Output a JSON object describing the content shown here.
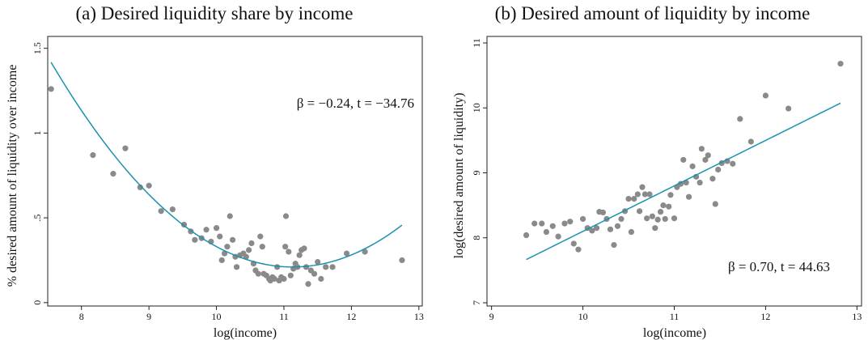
{
  "chart_data": [
    {
      "type": "scatter",
      "panel_title": "(a) Desired liquidity share by income",
      "xlabel": "log(income)",
      "ylabel": "% desired amount of liquidity over income",
      "annotation": "β = −0.24, t = −34.76",
      "xlim": [
        7.5,
        13.05
      ],
      "ylim": [
        -0.02,
        1.57
      ],
      "xticks": [
        "8",
        "9",
        "10",
        "11",
        "12",
        "13"
      ],
      "yticks": [
        "0",
        ".5",
        "1",
        "1.5"
      ],
      "grid": false,
      "fit": {
        "type": "quadratic",
        "coef": [
          0.21,
          0.0942,
          11.13
        ],
        "x_range": [
          7.55,
          12.75
        ],
        "color": "#1b91b0"
      },
      "points": [
        [
          7.55,
          1.26
        ],
        [
          8.17,
          0.87
        ],
        [
          8.47,
          0.76
        ],
        [
          8.65,
          0.91
        ],
        [
          8.87,
          0.68
        ],
        [
          9.0,
          0.69
        ],
        [
          9.18,
          0.54
        ],
        [
          9.35,
          0.55
        ],
        [
          9.52,
          0.46
        ],
        [
          9.62,
          0.42
        ],
        [
          9.68,
          0.37
        ],
        [
          9.78,
          0.38
        ],
        [
          9.85,
          0.43
        ],
        [
          9.92,
          0.36
        ],
        [
          10.0,
          0.44
        ],
        [
          10.05,
          0.39
        ],
        [
          10.08,
          0.25
        ],
        [
          10.12,
          0.29
        ],
        [
          10.16,
          0.33
        ],
        [
          10.2,
          0.51
        ],
        [
          10.24,
          0.37
        ],
        [
          10.28,
          0.27
        ],
        [
          10.3,
          0.21
        ],
        [
          10.35,
          0.28
        ],
        [
          10.4,
          0.29
        ],
        [
          10.44,
          0.27
        ],
        [
          10.48,
          0.31
        ],
        [
          10.52,
          0.35
        ],
        [
          10.55,
          0.23
        ],
        [
          10.58,
          0.19
        ],
        [
          10.62,
          0.17
        ],
        [
          10.65,
          0.39
        ],
        [
          10.68,
          0.33
        ],
        [
          10.7,
          0.17
        ],
        [
          10.74,
          0.16
        ],
        [
          10.78,
          0.14
        ],
        [
          10.8,
          0.13
        ],
        [
          10.83,
          0.15
        ],
        [
          10.86,
          0.14
        ],
        [
          10.9,
          0.21
        ],
        [
          10.93,
          0.13
        ],
        [
          10.96,
          0.15
        ],
        [
          11.0,
          0.14
        ],
        [
          11.02,
          0.33
        ],
        [
          11.03,
          0.51
        ],
        [
          11.07,
          0.3
        ],
        [
          11.1,
          0.16
        ],
        [
          11.14,
          0.2
        ],
        [
          11.17,
          0.23
        ],
        [
          11.2,
          0.21
        ],
        [
          11.23,
          0.28
        ],
        [
          11.26,
          0.31
        ],
        [
          11.3,
          0.32
        ],
        [
          11.33,
          0.21
        ],
        [
          11.36,
          0.11
        ],
        [
          11.4,
          0.19
        ],
        [
          11.45,
          0.17
        ],
        [
          11.5,
          0.24
        ],
        [
          11.55,
          0.14
        ],
        [
          11.62,
          0.21
        ],
        [
          11.72,
          0.21
        ],
        [
          11.93,
          0.29
        ],
        [
          12.2,
          0.3
        ],
        [
          12.75,
          0.25
        ]
      ]
    },
    {
      "type": "scatter",
      "panel_title": "(b) Desired amount of liquidity by income",
      "xlabel": "log(income)",
      "ylabel": "log(desired amount of liquidity)",
      "annotation": "β = 0.70, t = 44.63",
      "xlim": [
        8.95,
        13.05
      ],
      "ylim": [
        6.95,
        11.1
      ],
      "xticks": [
        "9",
        "10",
        "11",
        "12",
        "13"
      ],
      "yticks": [
        "7",
        "8",
        "9",
        "10",
        "11"
      ],
      "grid": false,
      "fit": {
        "type": "linear",
        "coef": [
          0.7,
          7.665,
          9.38
        ],
        "x_range": [
          9.38,
          12.82
        ],
        "color": "#1b91b0"
      },
      "points": [
        [
          9.38,
          8.04
        ],
        [
          9.47,
          8.22
        ],
        [
          9.55,
          8.22
        ],
        [
          9.6,
          8.09
        ],
        [
          9.67,
          8.18
        ],
        [
          9.73,
          8.02
        ],
        [
          9.8,
          8.22
        ],
        [
          9.86,
          8.25
        ],
        [
          9.9,
          7.91
        ],
        [
          9.95,
          7.82
        ],
        [
          10.0,
          8.29
        ],
        [
          10.05,
          8.15
        ],
        [
          10.1,
          8.11
        ],
        [
          10.15,
          8.15
        ],
        [
          10.18,
          8.4
        ],
        [
          10.22,
          8.39
        ],
        [
          10.26,
          8.29
        ],
        [
          10.3,
          8.13
        ],
        [
          10.34,
          7.89
        ],
        [
          10.38,
          8.18
        ],
        [
          10.42,
          8.29
        ],
        [
          10.46,
          8.41
        ],
        [
          10.5,
          8.6
        ],
        [
          10.53,
          8.09
        ],
        [
          10.56,
          8.6
        ],
        [
          10.6,
          8.67
        ],
        [
          10.62,
          8.41
        ],
        [
          10.65,
          8.78
        ],
        [
          10.68,
          8.67
        ],
        [
          10.7,
          8.3
        ],
        [
          10.73,
          8.67
        ],
        [
          10.76,
          8.33
        ],
        [
          10.79,
          8.15
        ],
        [
          10.82,
          8.28
        ],
        [
          10.85,
          8.4
        ],
        [
          10.88,
          8.5
        ],
        [
          10.9,
          8.29
        ],
        [
          10.94,
          8.48
        ],
        [
          10.96,
          8.66
        ],
        [
          11.0,
          8.3
        ],
        [
          11.03,
          8.78
        ],
        [
          11.07,
          8.83
        ],
        [
          11.1,
          9.2
        ],
        [
          11.13,
          8.85
        ],
        [
          11.16,
          8.63
        ],
        [
          11.2,
          9.1
        ],
        [
          11.24,
          8.94
        ],
        [
          11.28,
          8.85
        ],
        [
          11.3,
          9.37
        ],
        [
          11.34,
          9.2
        ],
        [
          11.37,
          9.27
        ],
        [
          11.42,
          8.91
        ],
        [
          11.45,
          8.52
        ],
        [
          11.48,
          9.05
        ],
        [
          11.52,
          9.15
        ],
        [
          11.58,
          9.18
        ],
        [
          11.64,
          9.14
        ],
        [
          11.72,
          9.83
        ],
        [
          11.84,
          9.48
        ],
        [
          12.0,
          10.19
        ],
        [
          12.25,
          9.99
        ],
        [
          12.82,
          10.68
        ]
      ]
    }
  ]
}
